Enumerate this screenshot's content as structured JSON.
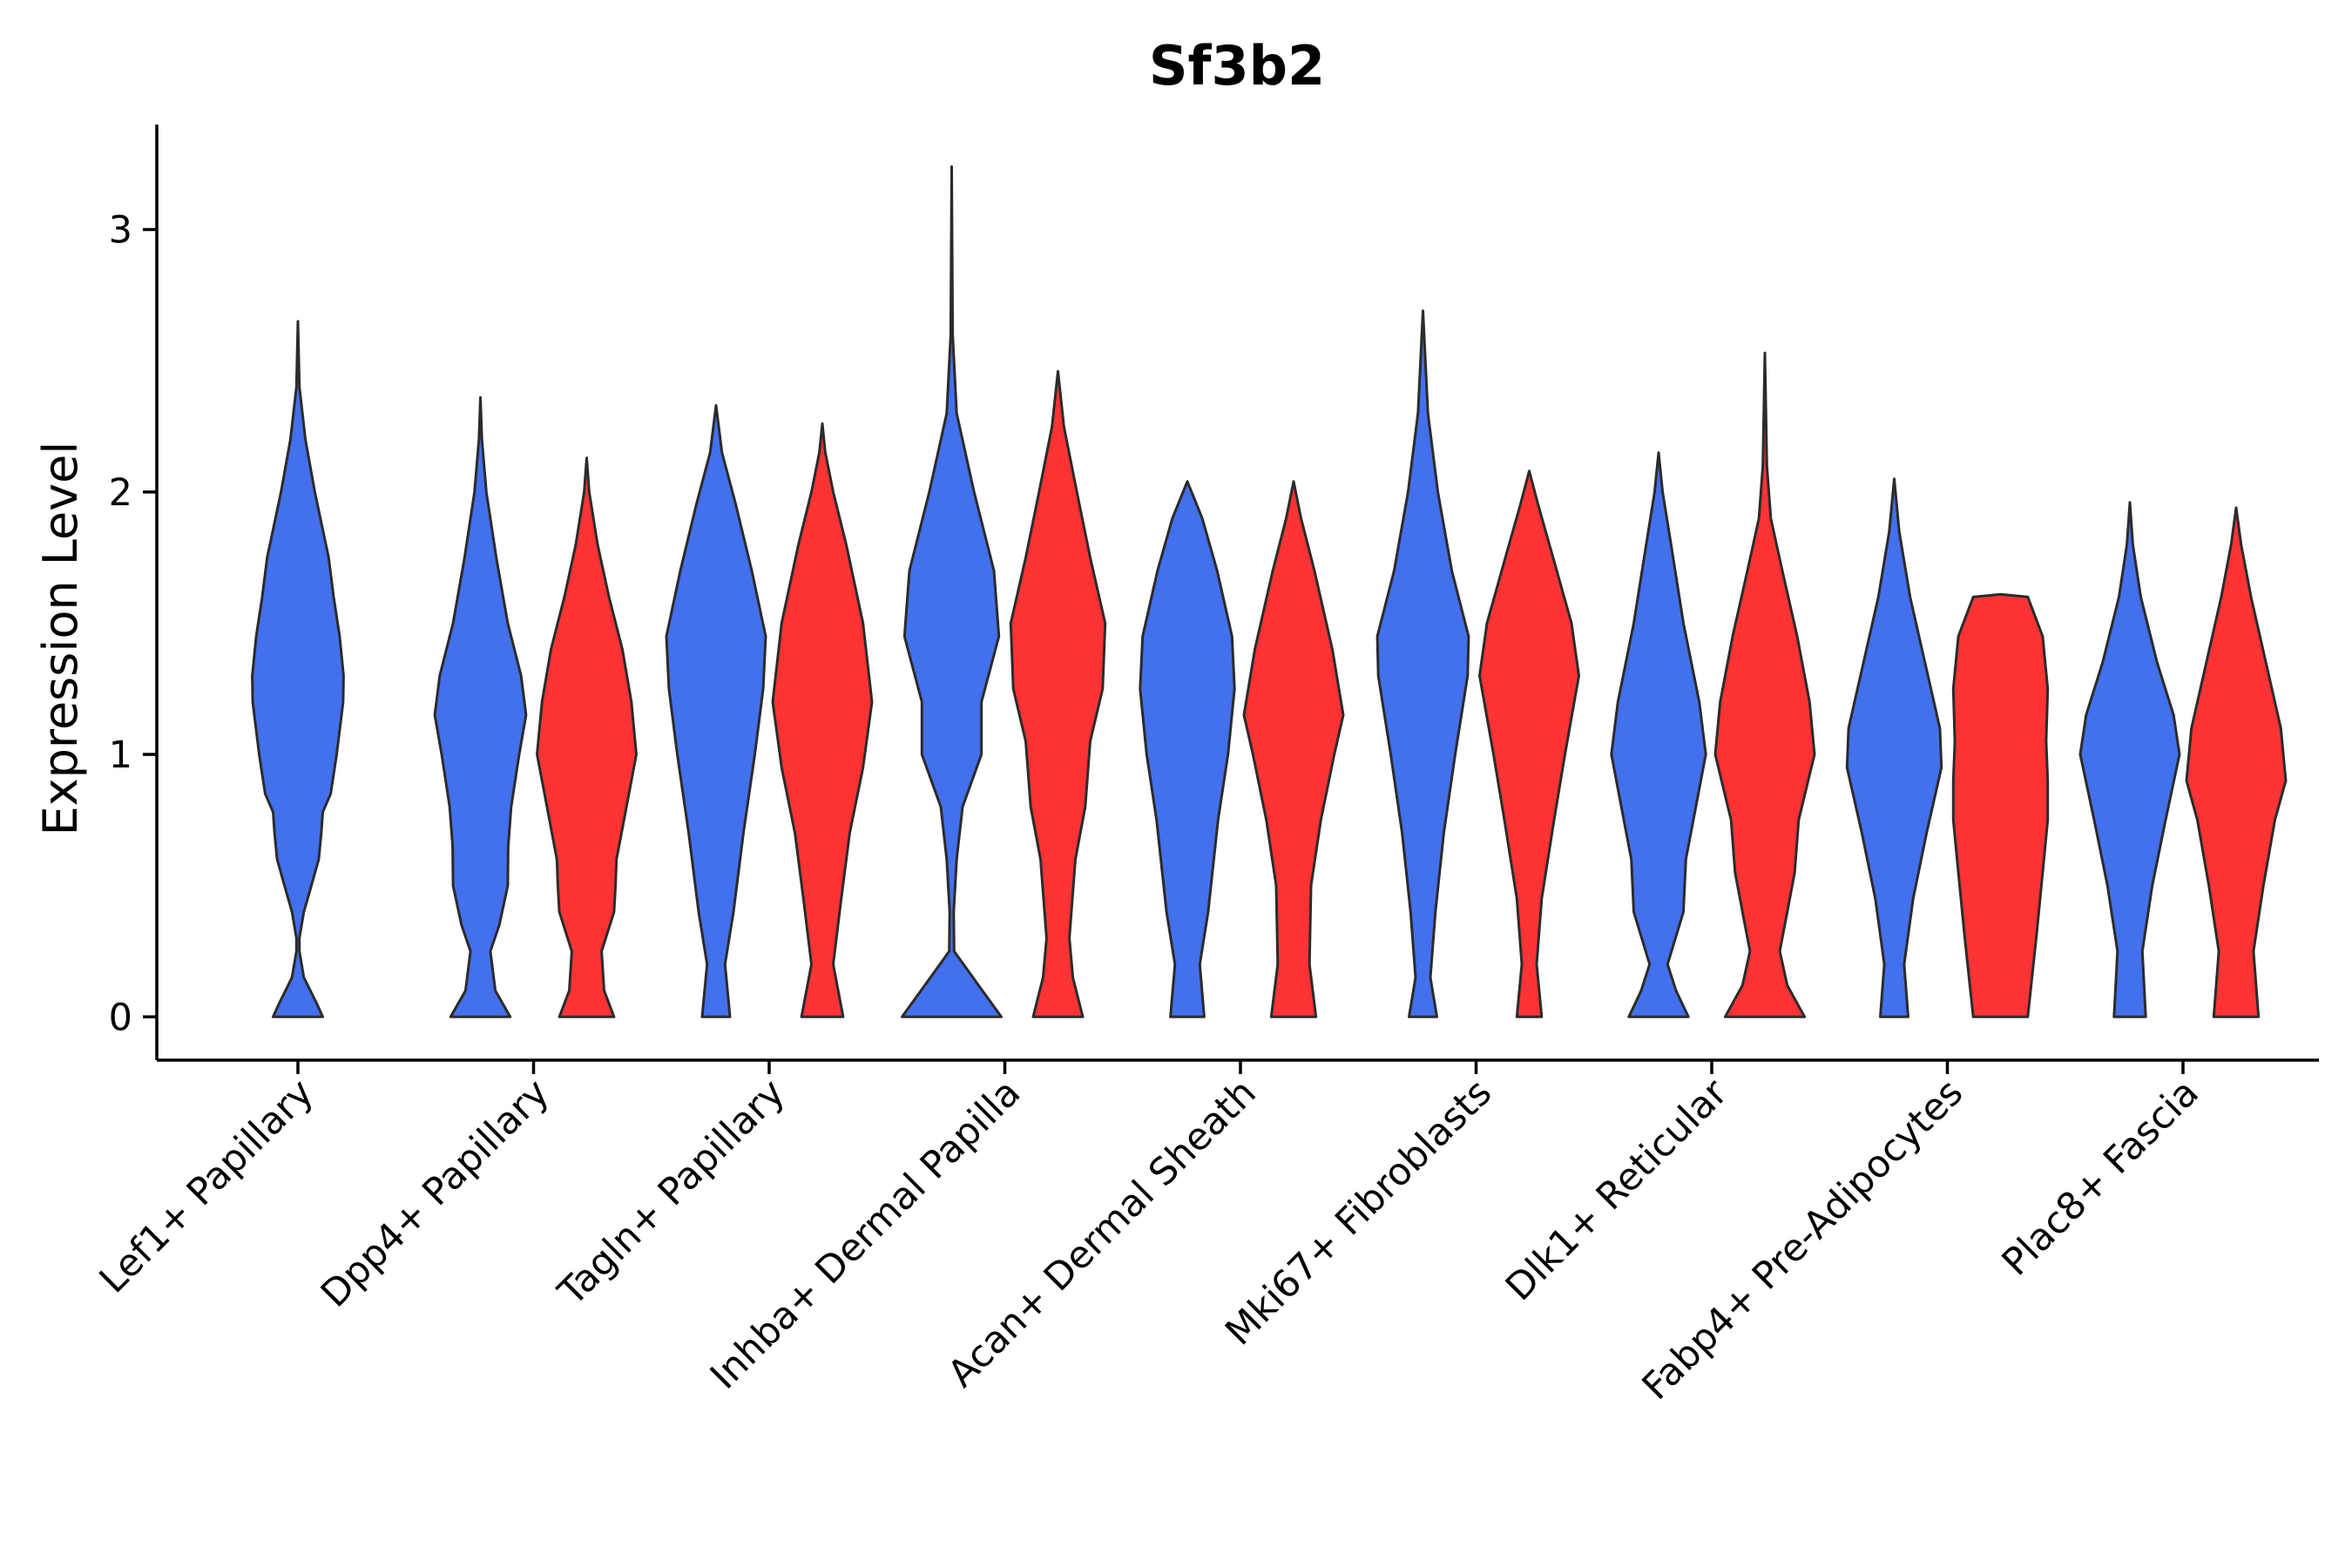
{
  "chart_data": {
    "type": "violin",
    "title": "Sf3b2",
    "ylabel": "Expression Level",
    "xlabel": "",
    "ylim": [
      -0.165,
      3.4
    ],
    "yticks": [
      0,
      1,
      2,
      3
    ],
    "grid": false,
    "colors": {
      "blue": "#4370EC",
      "red": "#FF3333"
    },
    "categories": [
      "Lef1+ Papillary",
      "Dpp4+ Papillary",
      "Tagln+ Papillary",
      "Inhba+ Dermal Papilla",
      "Acan+ Dermal Sheath",
      "Mki67+ Fibroblasts",
      "Dlk1+ Reticular",
      "Fabp4+ Pre-Adipocytes",
      "Plac8+ Fascia"
    ],
    "violins": [
      {
        "group": 0,
        "offset": 0,
        "color": "blue",
        "max": 2.65,
        "profile": [
          [
            0,
            0.5
          ],
          [
            0.05,
            0.38
          ],
          [
            0.15,
            0.12
          ],
          [
            0.25,
            0.03
          ],
          [
            0.3,
            0.03
          ],
          [
            0.4,
            0.12
          ],
          [
            0.5,
            0.27
          ],
          [
            0.6,
            0.42
          ],
          [
            0.7,
            0.47
          ],
          [
            0.78,
            0.5
          ],
          [
            0.85,
            0.66
          ],
          [
            1.0,
            0.78
          ],
          [
            1.2,
            0.91
          ],
          [
            1.3,
            0.92
          ],
          [
            1.45,
            0.84
          ],
          [
            1.6,
            0.72
          ],
          [
            1.75,
            0.62
          ],
          [
            2.0,
            0.34
          ],
          [
            2.2,
            0.15
          ],
          [
            2.4,
            0.03
          ],
          [
            2.65,
            0.0
          ]
        ]
      },
      {
        "group": 1,
        "offset": -1,
        "color": "blue",
        "max": 2.36,
        "profile": [
          [
            0,
            0.6
          ],
          [
            0.1,
            0.3
          ],
          [
            0.25,
            0.2
          ],
          [
            0.35,
            0.38
          ],
          [
            0.5,
            0.55
          ],
          [
            0.65,
            0.56
          ],
          [
            0.8,
            0.62
          ],
          [
            1.0,
            0.78
          ],
          [
            1.15,
            0.92
          ],
          [
            1.3,
            0.82
          ],
          [
            1.5,
            0.55
          ],
          [
            1.75,
            0.32
          ],
          [
            2.0,
            0.12
          ],
          [
            2.2,
            0.03
          ],
          [
            2.36,
            0.0
          ]
        ]
      },
      {
        "group": 1,
        "offset": 1,
        "color": "red",
        "max": 2.13,
        "profile": [
          [
            0,
            0.55
          ],
          [
            0.1,
            0.35
          ],
          [
            0.25,
            0.3
          ],
          [
            0.4,
            0.55
          ],
          [
            0.5,
            0.58
          ],
          [
            0.6,
            0.6
          ],
          [
            0.75,
            0.75
          ],
          [
            1.0,
            1.0
          ],
          [
            1.2,
            0.9
          ],
          [
            1.4,
            0.72
          ],
          [
            1.6,
            0.45
          ],
          [
            1.8,
            0.22
          ],
          [
            2.0,
            0.05
          ],
          [
            2.13,
            0.0
          ]
        ]
      },
      {
        "group": 2,
        "offset": -1,
        "color": "blue",
        "max": 2.33,
        "profile": [
          [
            0,
            0.28
          ],
          [
            0.2,
            0.18
          ],
          [
            0.4,
            0.35
          ],
          [
            0.7,
            0.55
          ],
          [
            1.0,
            0.78
          ],
          [
            1.25,
            0.95
          ],
          [
            1.45,
            1.0
          ],
          [
            1.7,
            0.72
          ],
          [
            1.95,
            0.4
          ],
          [
            2.15,
            0.12
          ],
          [
            2.33,
            0.0
          ]
        ]
      },
      {
        "group": 2,
        "offset": 1,
        "color": "red",
        "max": 2.26,
        "profile": [
          [
            0,
            0.42
          ],
          [
            0.2,
            0.22
          ],
          [
            0.45,
            0.38
          ],
          [
            0.7,
            0.55
          ],
          [
            0.95,
            0.82
          ],
          [
            1.2,
            1.0
          ],
          [
            1.5,
            0.82
          ],
          [
            1.8,
            0.48
          ],
          [
            2.0,
            0.22
          ],
          [
            2.15,
            0.06
          ],
          [
            2.26,
            0.0
          ]
        ]
      },
      {
        "group": 3,
        "offset": -1,
        "color": "blue",
        "max": 3.24,
        "profile": [
          [
            0,
            1.0
          ],
          [
            0.1,
            0.62
          ],
          [
            0.25,
            0.05
          ],
          [
            0.4,
            0.04
          ],
          [
            0.6,
            0.1
          ],
          [
            0.8,
            0.22
          ],
          [
            1.0,
            0.6
          ],
          [
            1.2,
            0.6
          ],
          [
            1.45,
            0.95
          ],
          [
            1.7,
            0.85
          ],
          [
            2.0,
            0.45
          ],
          [
            2.3,
            0.1
          ],
          [
            2.6,
            0.02
          ],
          [
            3.24,
            0.0
          ]
        ]
      },
      {
        "group": 3,
        "offset": 1,
        "color": "red",
        "max": 2.46,
        "profile": [
          [
            0,
            0.5
          ],
          [
            0.15,
            0.3
          ],
          [
            0.3,
            0.23
          ],
          [
            0.6,
            0.35
          ],
          [
            0.8,
            0.55
          ],
          [
            1.05,
            0.65
          ],
          [
            1.25,
            0.9
          ],
          [
            1.5,
            0.95
          ],
          [
            1.75,
            0.65
          ],
          [
            2.0,
            0.38
          ],
          [
            2.25,
            0.12
          ],
          [
            2.46,
            0.0
          ]
        ]
      },
      {
        "group": 4,
        "offset": -1,
        "color": "blue",
        "max": 2.04,
        "profile": [
          [
            0,
            0.34
          ],
          [
            0.2,
            0.25
          ],
          [
            0.4,
            0.42
          ],
          [
            0.75,
            0.62
          ],
          [
            1.0,
            0.82
          ],
          [
            1.25,
            0.95
          ],
          [
            1.45,
            0.9
          ],
          [
            1.7,
            0.6
          ],
          [
            1.9,
            0.3
          ],
          [
            2.04,
            0.0
          ]
        ]
      },
      {
        "group": 4,
        "offset": 1,
        "color": "red",
        "max": 2.04,
        "profile": [
          [
            0,
            0.45
          ],
          [
            0.2,
            0.32
          ],
          [
            0.5,
            0.35
          ],
          [
            0.75,
            0.55
          ],
          [
            1.0,
            0.82
          ],
          [
            1.15,
            1.0
          ],
          [
            1.4,
            0.78
          ],
          [
            1.7,
            0.42
          ],
          [
            1.9,
            0.15
          ],
          [
            2.04,
            0.0
          ]
        ]
      },
      {
        "group": 5,
        "offset": -1,
        "color": "blue",
        "max": 2.69,
        "profile": [
          [
            0,
            0.28
          ],
          [
            0.15,
            0.15
          ],
          [
            0.4,
            0.25
          ],
          [
            0.7,
            0.42
          ],
          [
            1.0,
            0.65
          ],
          [
            1.3,
            0.9
          ],
          [
            1.45,
            0.92
          ],
          [
            1.7,
            0.58
          ],
          [
            2.0,
            0.3
          ],
          [
            2.3,
            0.1
          ],
          [
            2.69,
            0.0
          ]
        ]
      },
      {
        "group": 5,
        "offset": 1,
        "color": "red",
        "max": 2.08,
        "profile": [
          [
            0,
            0.25
          ],
          [
            0.2,
            0.15
          ],
          [
            0.45,
            0.25
          ],
          [
            0.75,
            0.5
          ],
          [
            1.0,
            0.72
          ],
          [
            1.3,
            1.0
          ],
          [
            1.5,
            0.85
          ],
          [
            1.75,
            0.48
          ],
          [
            1.95,
            0.18
          ],
          [
            2.08,
            0.0
          ]
        ]
      },
      {
        "group": 6,
        "offset": -1,
        "color": "blue",
        "max": 2.15,
        "profile": [
          [
            0,
            0.6
          ],
          [
            0.1,
            0.35
          ],
          [
            0.2,
            0.18
          ],
          [
            0.4,
            0.5
          ],
          [
            0.6,
            0.55
          ],
          [
            0.75,
            0.7
          ],
          [
            1.0,
            0.95
          ],
          [
            1.2,
            0.82
          ],
          [
            1.5,
            0.5
          ],
          [
            1.8,
            0.25
          ],
          [
            2.0,
            0.08
          ],
          [
            2.15,
            0.0
          ]
        ]
      },
      {
        "group": 6,
        "offset": 1,
        "color": "red",
        "max": 2.53,
        "profile": [
          [
            0,
            0.8
          ],
          [
            0.12,
            0.45
          ],
          [
            0.25,
            0.3
          ],
          [
            0.4,
            0.45
          ],
          [
            0.55,
            0.6
          ],
          [
            0.75,
            0.68
          ],
          [
            1.0,
            1.0
          ],
          [
            1.2,
            0.9
          ],
          [
            1.45,
            0.65
          ],
          [
            1.7,
            0.35
          ],
          [
            1.9,
            0.12
          ],
          [
            2.1,
            0.04
          ],
          [
            2.53,
            0.0
          ]
        ]
      },
      {
        "group": 7,
        "offset": -1,
        "color": "blue",
        "max": 2.05,
        "profile": [
          [
            0,
            0.28
          ],
          [
            0.2,
            0.2
          ],
          [
            0.45,
            0.38
          ],
          [
            0.7,
            0.65
          ],
          [
            0.95,
            0.95
          ],
          [
            1.1,
            0.92
          ],
          [
            1.35,
            0.62
          ],
          [
            1.6,
            0.32
          ],
          [
            1.85,
            0.1
          ],
          [
            2.05,
            0.0
          ]
        ]
      },
      {
        "group": 7,
        "offset": 1,
        "color": "red",
        "max": 1.61,
        "profile": [
          [
            0,
            0.55
          ],
          [
            0.3,
            0.72
          ],
          [
            0.55,
            0.85
          ],
          [
            0.75,
            0.95
          ],
          [
            0.9,
            0.95
          ],
          [
            1.05,
            0.92
          ],
          [
            1.25,
            0.95
          ],
          [
            1.45,
            0.85
          ],
          [
            1.6,
            0.55
          ],
          [
            1.61,
            0.0
          ]
        ]
      },
      {
        "group": 8,
        "offset": -1,
        "color": "blue",
        "max": 1.96,
        "profile": [
          [
            0,
            0.32
          ],
          [
            0.25,
            0.25
          ],
          [
            0.5,
            0.45
          ],
          [
            0.75,
            0.72
          ],
          [
            1.0,
            1.0
          ],
          [
            1.15,
            0.88
          ],
          [
            1.35,
            0.55
          ],
          [
            1.6,
            0.22
          ],
          [
            1.8,
            0.06
          ],
          [
            1.96,
            0.0
          ]
        ]
      },
      {
        "group": 8,
        "offset": 1,
        "color": "red",
        "max": 1.94,
        "profile": [
          [
            0,
            0.45
          ],
          [
            0.25,
            0.35
          ],
          [
            0.5,
            0.55
          ],
          [
            0.75,
            0.78
          ],
          [
            0.9,
            1.0
          ],
          [
            1.1,
            0.9
          ],
          [
            1.35,
            0.6
          ],
          [
            1.6,
            0.3
          ],
          [
            1.8,
            0.1
          ],
          [
            1.94,
            0.0
          ]
        ]
      }
    ]
  }
}
